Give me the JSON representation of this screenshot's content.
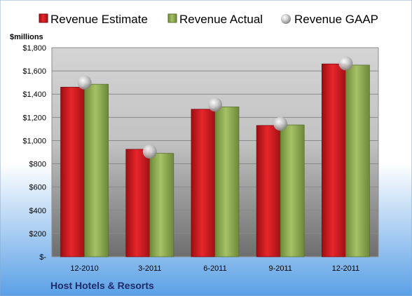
{
  "chart_data": {
    "type": "bar",
    "categories": [
      "12-2010",
      "3-2011",
      "6-2011",
      "9-2011",
      "12-2011"
    ],
    "series": [
      {
        "name": "Revenue Estimate",
        "type": "bar",
        "values": [
          1460,
          925,
          1270,
          1130,
          1660
        ]
      },
      {
        "name": "Revenue Actual",
        "type": "bar",
        "values": [
          1485,
          890,
          1290,
          1135,
          1650
        ]
      },
      {
        "name": "Revenue GAAP",
        "type": "scatter",
        "values": [
          1500,
          905,
          1310,
          1145,
          1665
        ]
      }
    ],
    "unit_label": "$millions",
    "y_ticks": [
      "$-",
      "$200",
      "$400",
      "$600",
      "$800",
      "$1,000",
      "$1,200",
      "$1,400",
      "$1,600",
      "$1,800"
    ],
    "ylim": [
      0,
      1800
    ],
    "footer_label": "Host Hotels & Resorts",
    "legend_position": "top",
    "grid": true,
    "colors": {
      "estimate": "#d0161b",
      "actual": "#8cab4f",
      "gaap": "#b9b9b9",
      "plot_bg_top": "#d6d6d6",
      "plot_bg_bottom": "#6a6a6a"
    }
  }
}
